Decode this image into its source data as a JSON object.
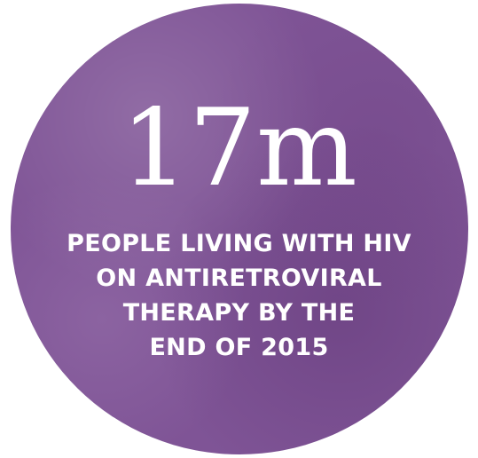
{
  "stat": {
    "value": "17m",
    "lines": [
      "PEOPLE LIVING WITH HIV",
      "ON ANTIRETROVIRAL",
      "THERAPY BY THE",
      "END OF 2015"
    ]
  },
  "colors": {
    "circle": "#7f5496",
    "text": "#ffffff"
  }
}
